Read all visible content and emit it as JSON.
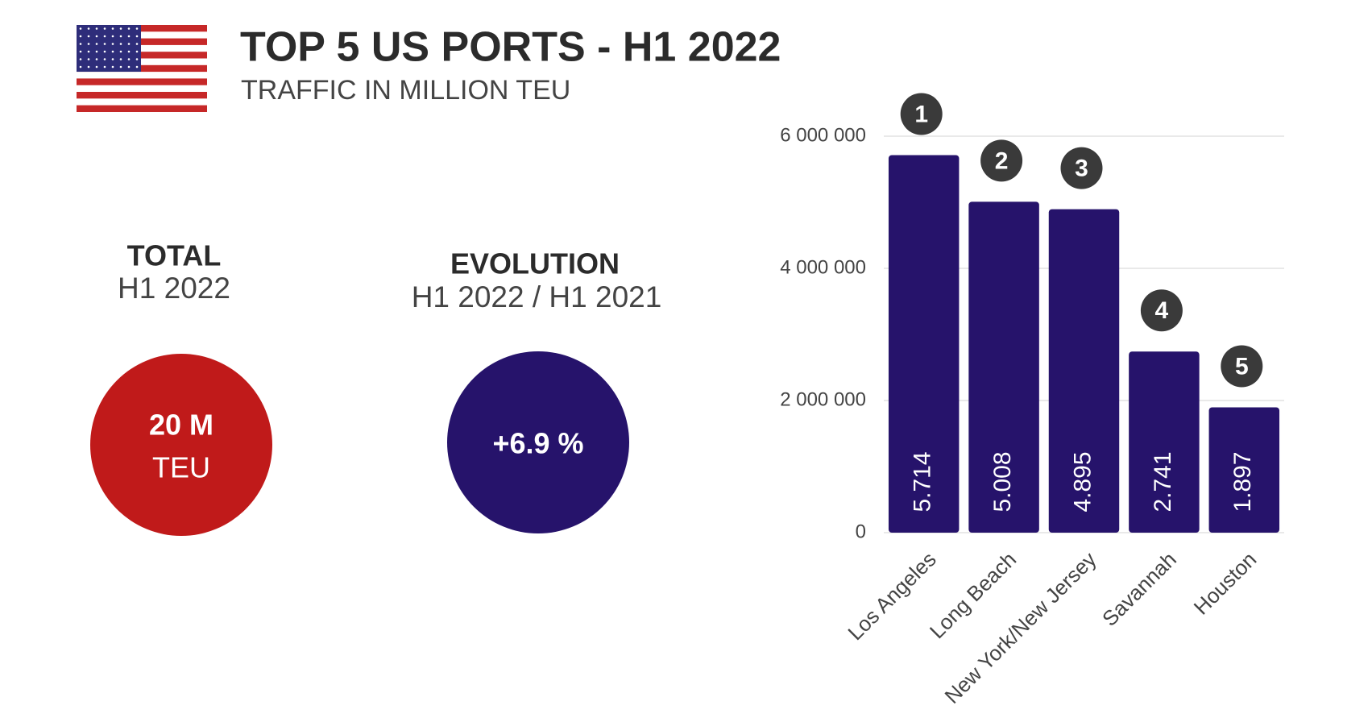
{
  "header": {
    "title": "TOP 5 US PORTS - H1 2022",
    "subtitle": "TRAFFIC IN MILLION TEU"
  },
  "stats": {
    "total": {
      "title": "TOTAL",
      "period": "H1 2022",
      "value": "20 M",
      "unit": "TEU",
      "color": "#c01a1a"
    },
    "evolution": {
      "title": "EVOLUTION",
      "period": "H1 2022 / H1 2021",
      "value": "+6.9 %",
      "color": "#26136b"
    }
  },
  "chart_data": {
    "type": "bar",
    "categories": [
      "Los Angeles",
      "Long Beach",
      "New York/New Jersey",
      "Savannah",
      "Houston"
    ],
    "values": [
      5714000,
      5008000,
      4895000,
      2741000,
      1897000
    ],
    "value_labels": [
      "5.714",
      "5.008",
      "4.895",
      "2.741",
      "1.897"
    ],
    "rank_labels": [
      "1",
      "2",
      "3",
      "4",
      "5"
    ],
    "color": "#26136b",
    "ylim": [
      0,
      6000000
    ],
    "yticks": [
      0,
      {
        "value": 2000000,
        "label": "2 000 000"
      },
      {
        "value": 4000000,
        "label": "4 000 000"
      },
      {
        "value": 6000000,
        "label": "6 000 000"
      }
    ],
    "grid": true
  }
}
